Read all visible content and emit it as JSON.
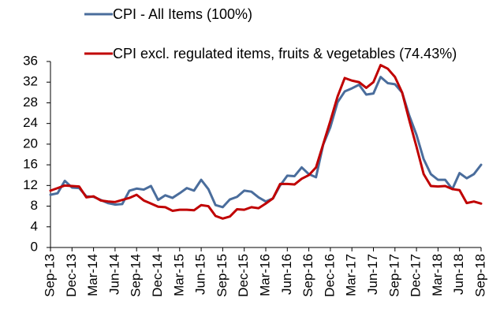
{
  "chart_data": {
    "type": "line",
    "categories": [
      "Sep-13",
      null,
      null,
      "Dec-13",
      null,
      null,
      "Mar-14",
      null,
      null,
      "Jun-14",
      null,
      null,
      "Sep-14",
      null,
      null,
      "Dec-14",
      null,
      null,
      "Mar-15",
      null,
      null,
      "Jun-15",
      null,
      null,
      "Sep-15",
      null,
      null,
      "Dec-15",
      null,
      null,
      "Mar-16",
      null,
      null,
      "Jun-16",
      null,
      null,
      "Sep-16",
      null,
      null,
      "Dec-16",
      null,
      null,
      "Mar-17",
      null,
      null,
      "Jun-17",
      null,
      null,
      "Sep-17",
      null,
      null,
      "Dec-17",
      null,
      null,
      "Mar-18",
      null,
      null,
      "Jun-18",
      null,
      null,
      "Sep-18"
    ],
    "series": [
      {
        "name": "CPI - All Items (100%)",
        "color": "#4a6d9c",
        "values": [
          10.2,
          10.5,
          12.9,
          11.6,
          11.5,
          9.9,
          9.8,
          9.2,
          8.6,
          8.3,
          8.4,
          11.0,
          11.4,
          11.2,
          11.9,
          9.2,
          10.1,
          9.6,
          10.5,
          11.5,
          11.0,
          13.1,
          11.3,
          8.2,
          7.8,
          9.3,
          9.8,
          11.0,
          10.8,
          9.7,
          8.9,
          9.5,
          12.0,
          13.9,
          13.8,
          15.5,
          14.2,
          13.6,
          19.9,
          23.3,
          28.1,
          30.2,
          30.8,
          31.5,
          29.6,
          29.8,
          33.0,
          31.8,
          31.6,
          30.0,
          25.5,
          21.8,
          17.1,
          14.2,
          13.1,
          13.1,
          11.3,
          14.4,
          13.4,
          14.2,
          16.0
        ]
      },
      {
        "name": "CPI excl. regulated items, fruits & vegetables (74.43%)",
        "color": "#c00000",
        "values": [
          11.0,
          11.5,
          12.0,
          11.9,
          11.8,
          9.7,
          9.9,
          9.1,
          8.9,
          8.8,
          9.2,
          9.6,
          10.2,
          9.1,
          8.5,
          7.9,
          7.8,
          7.1,
          7.3,
          7.3,
          7.2,
          8.2,
          8.0,
          6.1,
          5.6,
          6.0,
          7.4,
          7.3,
          7.8,
          7.6,
          8.5,
          9.5,
          12.3,
          12.3,
          12.2,
          13.3,
          14.0,
          15.5,
          20.0,
          24.5,
          29.2,
          32.8,
          32.3,
          32.0,
          30.9,
          32.0,
          35.3,
          34.6,
          33.0,
          30.0,
          24.6,
          19.5,
          14.2,
          11.9,
          11.8,
          11.9,
          11.3,
          11.1,
          8.6,
          8.9,
          8.5
        ]
      }
    ],
    "ylim": [
      0,
      36
    ],
    "yticks": [
      0,
      4,
      8,
      12,
      16,
      20,
      24,
      28,
      32,
      36
    ],
    "legend": "top"
  }
}
